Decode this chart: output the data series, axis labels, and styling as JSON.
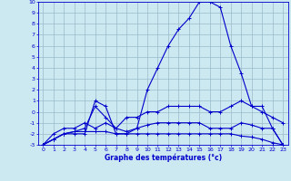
{
  "xlabel": "Graphe des températures (°c)",
  "background_color": "#cce8f0",
  "grid_color": "#99bbcc",
  "line_color": "#0000cc",
  "xlim": [
    -0.5,
    23.5
  ],
  "ylim": [
    -3,
    10
  ],
  "xticks": [
    0,
    1,
    2,
    3,
    4,
    5,
    6,
    7,
    8,
    9,
    10,
    11,
    12,
    13,
    14,
    15,
    16,
    17,
    18,
    19,
    20,
    21,
    22,
    23
  ],
  "yticks": [
    -3,
    -2,
    -1,
    0,
    1,
    2,
    3,
    4,
    5,
    6,
    7,
    8,
    9,
    10
  ],
  "series": [
    {
      "x": [
        0,
        1,
        2,
        3,
        4,
        5,
        6,
        7,
        8,
        9,
        10,
        11,
        12,
        13,
        14,
        15,
        16,
        17,
        18,
        19,
        20,
        21,
        22,
        23
      ],
      "y": [
        -3,
        -2.5,
        -2,
        -1.8,
        -1.8,
        -1.8,
        -1.8,
        -2,
        -2,
        -2,
        -2,
        -2,
        -2,
        -2,
        -2,
        -2,
        -2,
        -2,
        -2,
        -2.2,
        -2.3,
        -2.5,
        -2.8,
        -3
      ]
    },
    {
      "x": [
        0,
        1,
        2,
        3,
        4,
        5,
        6,
        7,
        8,
        9,
        10,
        11,
        12,
        13,
        14,
        15,
        16,
        17,
        18,
        19,
        20,
        21,
        22,
        23
      ],
      "y": [
        -3,
        -2.5,
        -2,
        -1.8,
        -1.5,
        0.5,
        -0.5,
        -1.5,
        -1.8,
        -1.5,
        -1.2,
        -1,
        -1,
        -1,
        -1,
        -1,
        -1.5,
        -1.5,
        -1.5,
        -1,
        -1.2,
        -1.5,
        -1.5,
        -3
      ]
    },
    {
      "x": [
        0,
        1,
        2,
        3,
        4,
        5,
        6,
        7,
        8,
        9,
        10,
        11,
        12,
        13,
        14,
        15,
        16,
        17,
        18,
        19,
        20,
        21,
        22,
        23
      ],
      "y": [
        -3,
        -2,
        -1.5,
        -1.5,
        -1,
        -1.5,
        -1,
        -1.5,
        -0.5,
        -0.5,
        0,
        0,
        0.5,
        0.5,
        0.5,
        0.5,
        0,
        0,
        0.5,
        1,
        0.5,
        0,
        -0.5,
        -1
      ]
    },
    {
      "x": [
        0,
        1,
        2,
        3,
        4,
        5,
        6,
        7,
        8,
        9,
        10,
        11,
        12,
        13,
        14,
        15,
        16,
        17,
        18,
        19,
        20,
        21,
        22,
        23
      ],
      "y": [
        -3,
        -2.5,
        -2,
        -2,
        -2,
        1,
        0.5,
        -2,
        -2,
        -1.5,
        2,
        4,
        6,
        7.5,
        8.5,
        10,
        10,
        9.5,
        6,
        3.5,
        0.5,
        0.5,
        -1.5,
        -3
      ]
    }
  ]
}
